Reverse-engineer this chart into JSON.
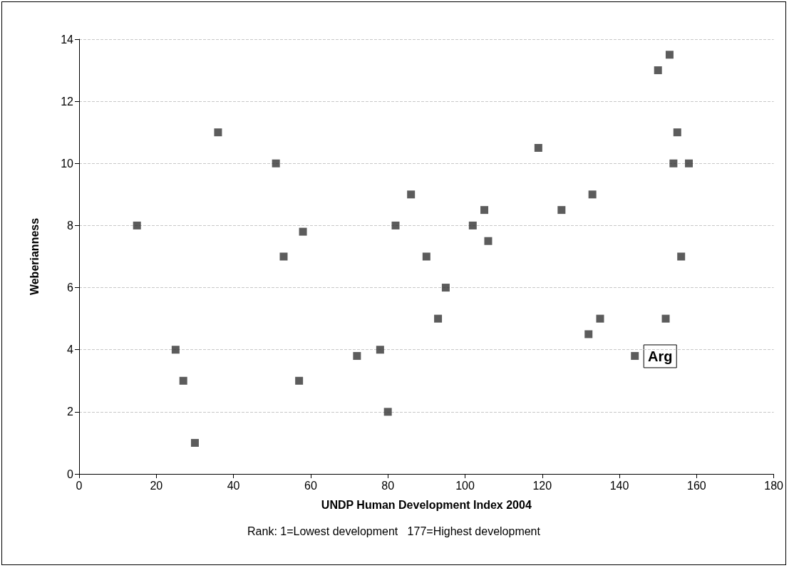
{
  "chart_data": {
    "type": "scatter",
    "xlabel": "UNDP Human Development Index 2004",
    "ylabel": "Weberianness",
    "x": [
      15,
      25,
      27,
      30,
      36,
      51,
      53,
      58,
      57,
      72,
      78,
      80,
      86,
      82,
      90,
      95,
      93,
      102,
      105,
      106,
      119,
      125,
      133,
      132,
      135,
      144,
      150,
      153,
      155,
      154,
      158,
      156,
      152
    ],
    "values": [
      8,
      4,
      3,
      1,
      11,
      10,
      7,
      7.8,
      3,
      3.8,
      4,
      2,
      9,
      8,
      7,
      6,
      5,
      8,
      8.5,
      7.5,
      10.5,
      8.5,
      9,
      4.5,
      5,
      3.8,
      13,
      13.5,
      11,
      10,
      10,
      7,
      5
    ],
    "color": "#333333",
    "marker": "square",
    "xlim": [
      0,
      180
    ],
    "xticks": [
      0,
      20,
      40,
      60,
      80,
      100,
      120,
      140,
      160,
      180
    ],
    "ylim": [
      0,
      14
    ],
    "yticks": [
      0,
      2,
      4,
      6,
      8,
      10,
      12,
      14
    ],
    "grid": "y",
    "annotations": [
      {
        "text": "Arg",
        "x": 144,
        "y": 3.8
      },
      "Rank: 1=Lowest development   177=Highest development"
    ]
  }
}
